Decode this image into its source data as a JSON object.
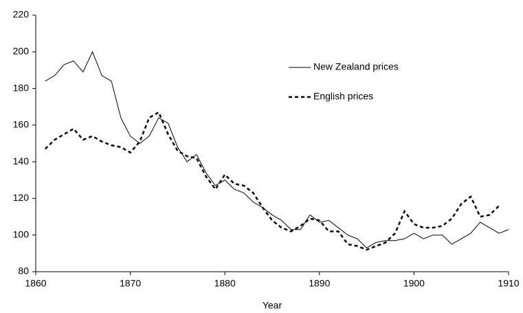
{
  "chart_data": {
    "type": "line",
    "xlabel": "Year",
    "x": [
      1861,
      1862,
      1863,
      1864,
      1865,
      1866,
      1867,
      1868,
      1869,
      1870,
      1871,
      1872,
      1873,
      1874,
      1875,
      1876,
      1877,
      1878,
      1879,
      1880,
      1881,
      1882,
      1883,
      1884,
      1885,
      1886,
      1887,
      1888,
      1889,
      1890,
      1891,
      1892,
      1893,
      1894,
      1895,
      1896,
      1897,
      1898,
      1899,
      1900,
      1901,
      1902,
      1903,
      1904,
      1905,
      1906,
      1907,
      1908,
      1909,
      1910
    ],
    "series": [
      {
        "name": "New Zealand prices",
        "color": "#000000",
        "linestyle": "solid",
        "values": [
          184,
          187,
          193,
          195,
          189,
          200,
          187,
          184,
          164,
          154,
          150,
          154,
          164,
          161,
          148,
          140,
          144,
          134,
          127,
          130,
          125,
          123,
          118,
          115,
          111,
          108,
          103,
          103,
          111,
          107,
          108,
          104,
          100,
          98,
          93,
          96,
          97,
          97,
          98,
          101,
          98,
          100,
          100,
          95,
          98,
          101,
          107,
          104,
          101,
          103
        ]
      },
      {
        "name": "English prices",
        "color": "#000000",
        "linestyle": "dotted",
        "values": [
          147,
          152,
          155,
          158,
          152,
          154,
          151,
          149,
          148,
          145,
          151,
          164,
          167,
          155,
          146,
          143,
          142,
          132,
          125,
          133,
          128,
          127,
          123,
          115,
          108,
          104,
          102,
          105,
          109,
          108,
          102,
          102,
          95,
          94,
          92,
          94,
          96,
          101,
          113,
          106,
          104,
          104,
          105,
          109,
          117,
          121,
          110,
          111,
          116,
          null
        ]
      }
    ],
    "xlim": [
      1860,
      1910
    ],
    "xticks": [
      1860,
      1870,
      1880,
      1890,
      1900,
      1910
    ],
    "ylim": [
      80,
      220
    ],
    "yticks": [
      80,
      100,
      120,
      140,
      160,
      180,
      200,
      220
    ]
  }
}
